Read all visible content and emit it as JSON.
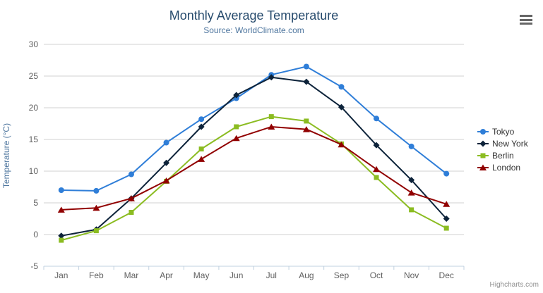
{
  "chart": {
    "title": "Monthly Average Temperature",
    "subtitle": "Source: WorldClimate.com",
    "yAxis_title": "Temperature (°C)"
  },
  "credits": {
    "label": "Highcharts.com"
  },
  "export_menu": {
    "icon": "hamburger-icon"
  },
  "colors": {
    "title": "#274b6d",
    "subtitle": "#4d759e",
    "axis_labels": "#606060",
    "gridline": "#d0d0d0",
    "axis_line": "#c0d0e0",
    "legend_text": "#333333",
    "credits_text": "#909090"
  },
  "chart_data": {
    "type": "line",
    "title": "Monthly Average Temperature",
    "subtitle": "Source: WorldClimate.com",
    "xlabel": "",
    "ylabel": "Temperature (°C)",
    "ylim": [
      -5,
      30
    ],
    "ytick_step": 5,
    "grid": true,
    "legend_position": "right",
    "categories": [
      "Jan",
      "Feb",
      "Mar",
      "Apr",
      "May",
      "Jun",
      "Jul",
      "Aug",
      "Sep",
      "Oct",
      "Nov",
      "Dec"
    ],
    "series": [
      {
        "name": "Tokyo",
        "color": "#2f7ed8",
        "marker": "circle",
        "values": [
          7.0,
          6.9,
          9.5,
          14.5,
          18.2,
          21.5,
          25.2,
          26.5,
          23.3,
          18.3,
          13.9,
          9.6
        ]
      },
      {
        "name": "New York",
        "color": "#0d233a",
        "marker": "diamond",
        "values": [
          -0.2,
          0.8,
          5.7,
          11.3,
          17.0,
          22.0,
          24.8,
          24.1,
          20.1,
          14.1,
          8.6,
          2.5
        ]
      },
      {
        "name": "Berlin",
        "color": "#8bbc21",
        "marker": "square",
        "values": [
          -0.9,
          0.6,
          3.5,
          8.4,
          13.5,
          17.0,
          18.6,
          17.9,
          14.3,
          9.0,
          3.9,
          1.0
        ]
      },
      {
        "name": "London",
        "color": "#910000",
        "marker": "triangle",
        "values": [
          3.9,
          4.2,
          5.7,
          8.5,
          11.9,
          15.2,
          17.0,
          16.6,
          14.2,
          10.3,
          6.6,
          4.8
        ]
      }
    ]
  }
}
